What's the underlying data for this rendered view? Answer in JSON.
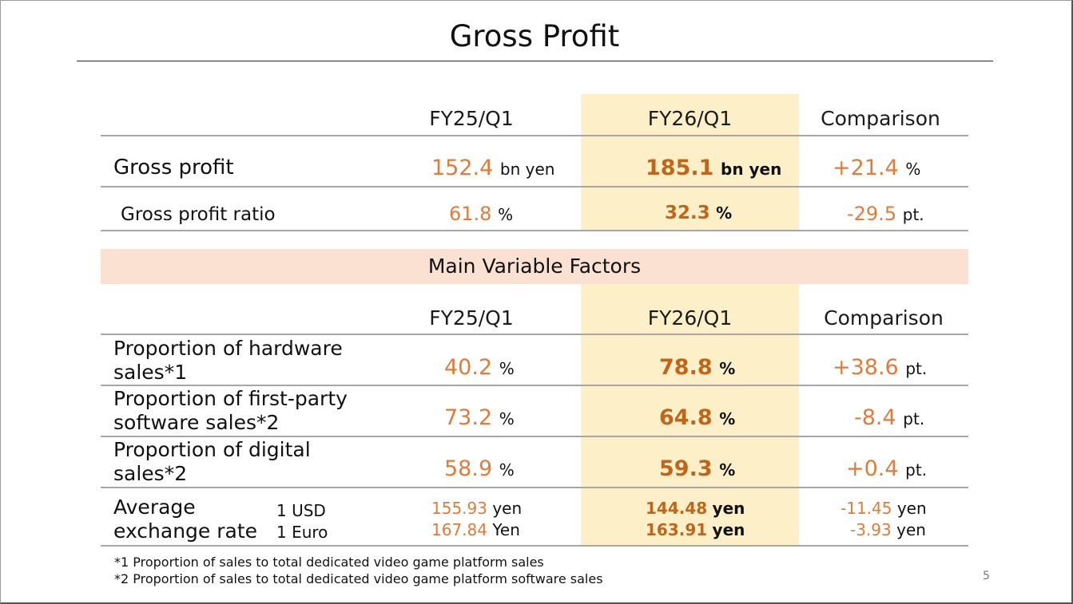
{
  "title": "Gross Profit",
  "page_number": "5",
  "section_header": "Main Variable Factors",
  "colors": {
    "accent": "#e07b39",
    "accent_bold": "#c0651a",
    "highlight": "#fdf0c9",
    "band": "#fbe1d1"
  },
  "top_table": {
    "col_fy25": "FY25/Q1",
    "col_fy26": "FY26/Q1",
    "col_cmp": "Comparison",
    "gross_profit": {
      "label": "Gross profit",
      "fy25": "152.4",
      "fy25_unit": "bn yen",
      "fy26": "185.1",
      "fy26_unit": "bn yen",
      "cmp": "+21.4",
      "cmp_unit": "%"
    },
    "gross_profit_ratio": {
      "label": "Gross profit ratio",
      "fy25": "61.8",
      "fy25_unit": "%",
      "fy26": "32.3",
      "fy26_unit": "%",
      "cmp": "-29.5",
      "cmp_unit": "pt."
    }
  },
  "factors_table": {
    "col_fy25": "FY25/Q1",
    "col_fy26": "FY26/Q1",
    "col_cmp": "Comparison",
    "hardware": {
      "label_line1": "Proportion of hardware",
      "label_line2": "sales*1",
      "fy25": "40.2",
      "fy25_unit": "%",
      "fy26": "78.8",
      "fy26_unit": "%",
      "cmp": "+38.6",
      "cmp_unit": "pt."
    },
    "first_party": {
      "label_line1": "Proportion of first-party",
      "label_line2": "software sales*2",
      "fy25": "73.2",
      "fy25_unit": "%",
      "fy26": "64.8",
      "fy26_unit": "%",
      "cmp": "-8.4",
      "cmp_unit": "pt."
    },
    "digital": {
      "label_line1": "Proportion of digital",
      "label_line2": "sales*2",
      "fy25": "58.9",
      "fy25_unit": "%",
      "fy26": "59.3",
      "fy26_unit": "%",
      "cmp": "+0.4",
      "cmp_unit": "pt."
    },
    "exchange": {
      "label_line1": "Average",
      "label_line2": "exchange rate",
      "usd": {
        "label": "1 USD",
        "fy25": "155.93",
        "fy25_unit": "yen",
        "fy26": "144.48",
        "fy26_unit": "yen",
        "cmp": "-11.45",
        "cmp_unit": "yen"
      },
      "euro": {
        "label": "1 Euro",
        "fy25": "167.84",
        "fy25_unit": "Yen",
        "fy26": "163.91",
        "fy26_unit": "yen",
        "cmp": "-3.93",
        "cmp_unit": "yen"
      }
    }
  },
  "footnotes": [
    "*1 Proportion of sales to total dedicated video game platform sales",
    "*2 Proportion of sales to total dedicated video game platform software sales"
  ]
}
